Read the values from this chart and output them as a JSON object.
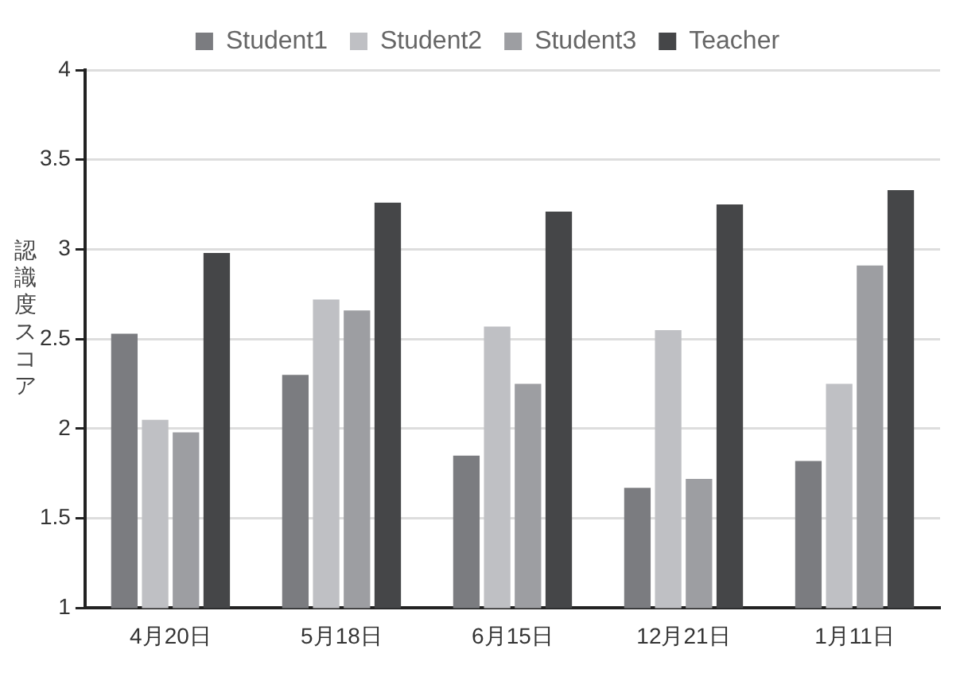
{
  "chart_data": {
    "type": "bar",
    "ylabel": "認識度スコア",
    "categories": [
      "4月20日",
      "5月18日",
      "6月15日",
      "12月21日",
      "1月11日"
    ],
    "series": [
      {
        "name": "Student1",
        "color": "#7b7c80",
        "values": [
          2.53,
          2.3,
          1.85,
          1.67,
          1.82
        ]
      },
      {
        "name": "Student2",
        "color": "#bfc0c4",
        "values": [
          2.05,
          2.72,
          2.57,
          2.55,
          2.25
        ]
      },
      {
        "name": "Student3",
        "color": "#9d9ea2",
        "values": [
          1.98,
          2.66,
          2.25,
          1.72,
          2.91
        ]
      },
      {
        "name": "Teacher",
        "color": "#454648",
        "values": [
          2.98,
          3.26,
          3.21,
          3.25,
          3.33
        ]
      }
    ],
    "ylim": [
      1,
      4
    ],
    "yticks": [
      1,
      1.5,
      2,
      2.5,
      3,
      3.5,
      4
    ],
    "grid": "y",
    "legend": "top"
  }
}
